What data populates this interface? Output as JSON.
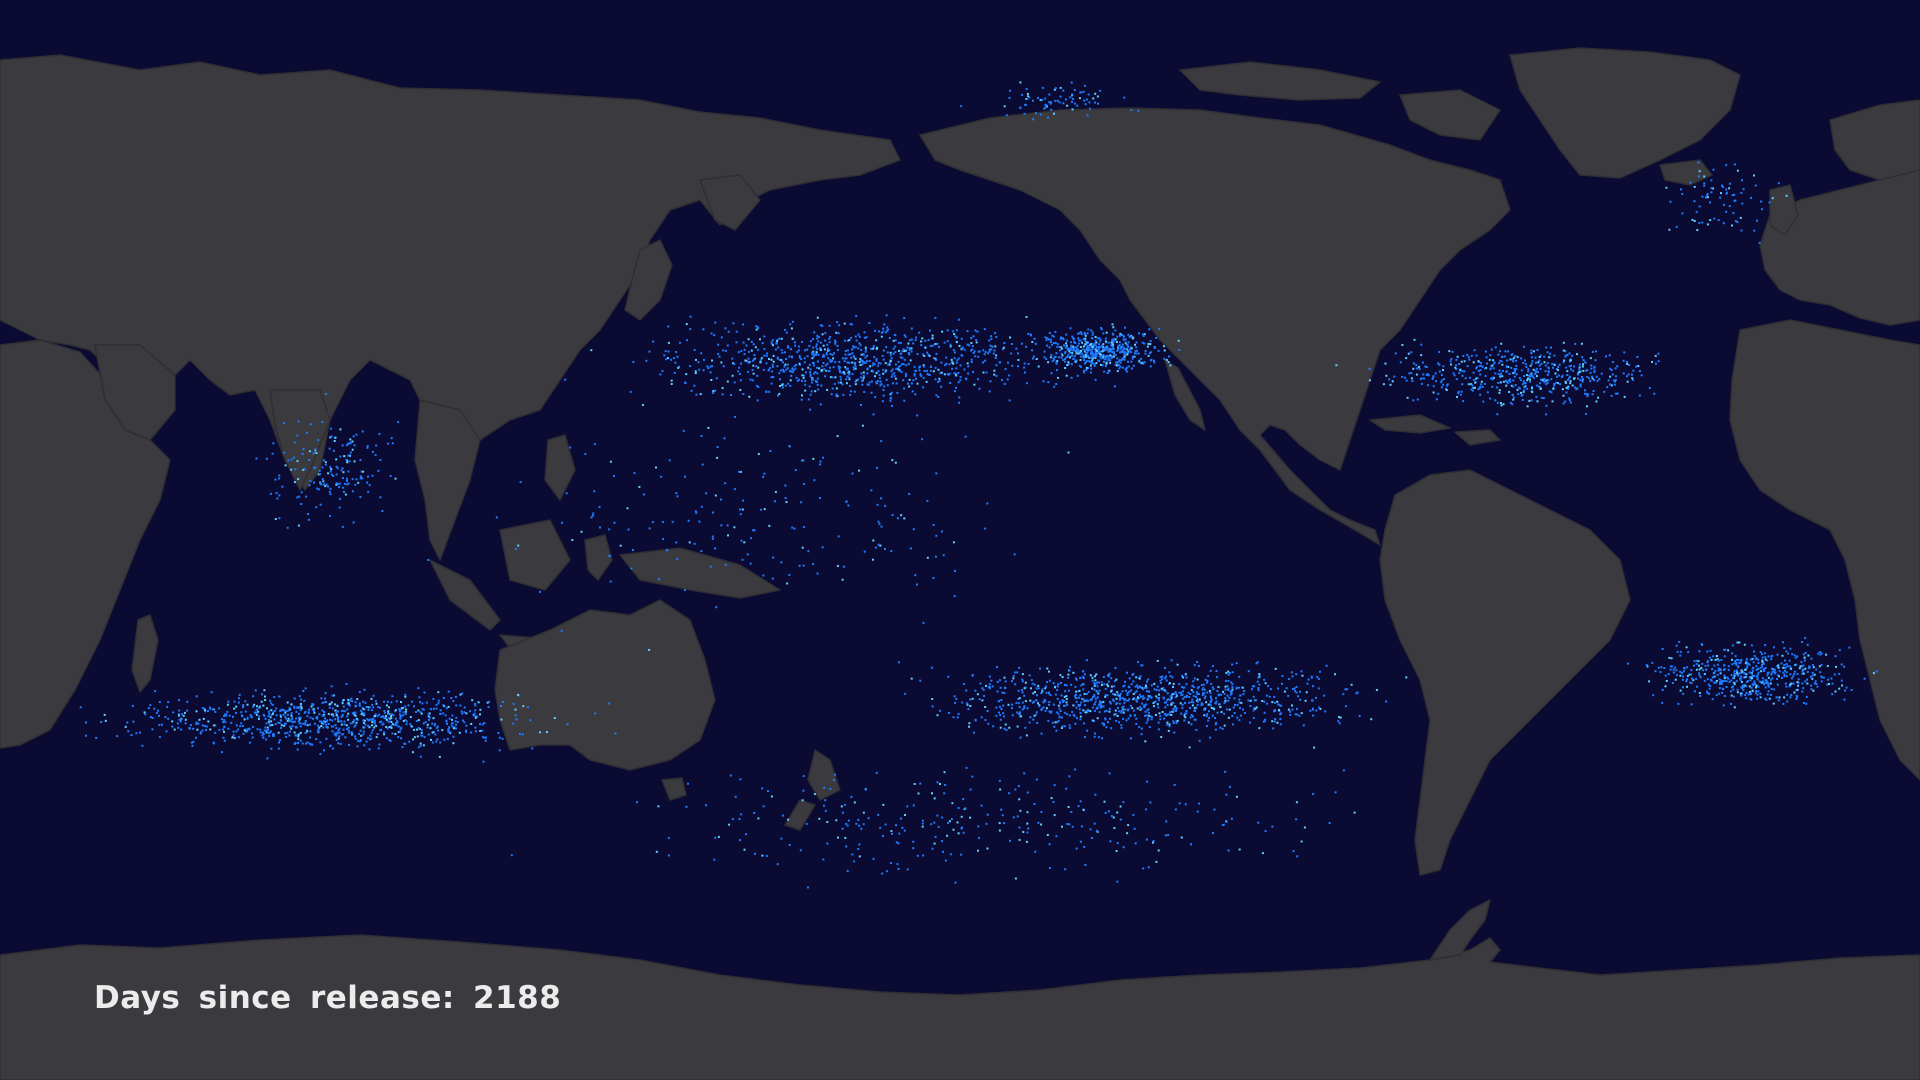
{
  "overlay": {
    "days_text": "Days since release: 2188"
  },
  "colors": {
    "ocean": "#0a0a33",
    "land": "#3a3a3f",
    "particle_primary": "#1e7bff",
    "particle_highlight": "#5fd0ff",
    "label_text": "#ececec"
  },
  "icons": {
    "particles": "marine-debris-particles"
  }
}
